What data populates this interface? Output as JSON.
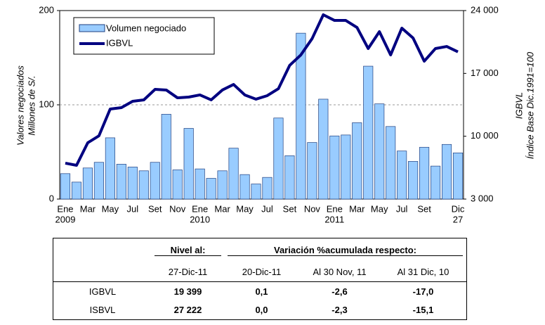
{
  "chart_data": {
    "type": "bar_line",
    "y_label": [
      "Valores negociados",
      "Millones de S/."
    ],
    "y2_label": [
      "IGBVL",
      "Índice Base Dic.1991=100"
    ],
    "categories": [
      "Ene",
      null,
      "Mar",
      null,
      "May",
      null,
      "Jul",
      null,
      "Set",
      null,
      "Nov",
      null,
      "Ene",
      null,
      "Mar",
      null,
      "May",
      null,
      "Jul",
      null,
      "Set",
      null,
      "Nov",
      null,
      "Ene",
      null,
      "Mar",
      null,
      "May",
      null,
      "Jul",
      null,
      "Set",
      null,
      null,
      "Dic"
    ],
    "category_sublabels": [
      "2009",
      null,
      null,
      null,
      null,
      null,
      null,
      null,
      null,
      null,
      null,
      null,
      "2010",
      null,
      null,
      null,
      null,
      null,
      null,
      null,
      null,
      null,
      null,
      null,
      "2011",
      null,
      null,
      null,
      null,
      null,
      null,
      null,
      null,
      null,
      null,
      "27"
    ],
    "series": [
      {
        "name": "Volumen negociado",
        "color": "#99ccff",
        "values": [
          27,
          18,
          33,
          39,
          65,
          37,
          34,
          30,
          39,
          90,
          31,
          75,
          32,
          22,
          30,
          54,
          26,
          16,
          23,
          86,
          46,
          176,
          60,
          106,
          67,
          68,
          81,
          141,
          101,
          77,
          51,
          40,
          55,
          35,
          58,
          49
        ]
      },
      {
        "name": "IGBVL",
        "color": "#000080",
        "axis": "y2",
        "values": [
          7000,
          6760,
          9270,
          10050,
          13030,
          13190,
          13890,
          14050,
          15220,
          15150,
          14280,
          14360,
          14600,
          14050,
          15150,
          15770,
          14600,
          14130,
          14520,
          15300,
          17890,
          19060,
          20870,
          23530,
          22900,
          22900,
          22120,
          19770,
          21650,
          19060,
          22040,
          20940,
          18360,
          19770,
          20000,
          19399
        ]
      }
    ],
    "ylim": [
      0,
      200
    ],
    "yticks": [
      0,
      100,
      200
    ],
    "y2lim": [
      3000,
      24000
    ],
    "y2ticks": [
      {
        "value": 3000,
        "label": "3 000"
      },
      {
        "value": 10000,
        "label": "10 000"
      },
      {
        "value": 17000,
        "label": "17 000"
      },
      {
        "value": 24000,
        "label": "24 000"
      }
    ],
    "grid": true,
    "legend": "upper left"
  },
  "table": {
    "header": [
      "Nivel al:",
      "Variación %acumulada respecto:"
    ],
    "subheader": [
      "27-Dic-11",
      "20-Dic-11",
      "Al 30 Nov, 11",
      "Al 31 Dic, 10"
    ],
    "rows": [
      [
        "IGBVL",
        "19 399",
        "0,1",
        "-2,6",
        "-17,0"
      ],
      [
        "ISBVL",
        "27 222",
        "0,0",
        "-2,3",
        "-15,1"
      ]
    ]
  }
}
